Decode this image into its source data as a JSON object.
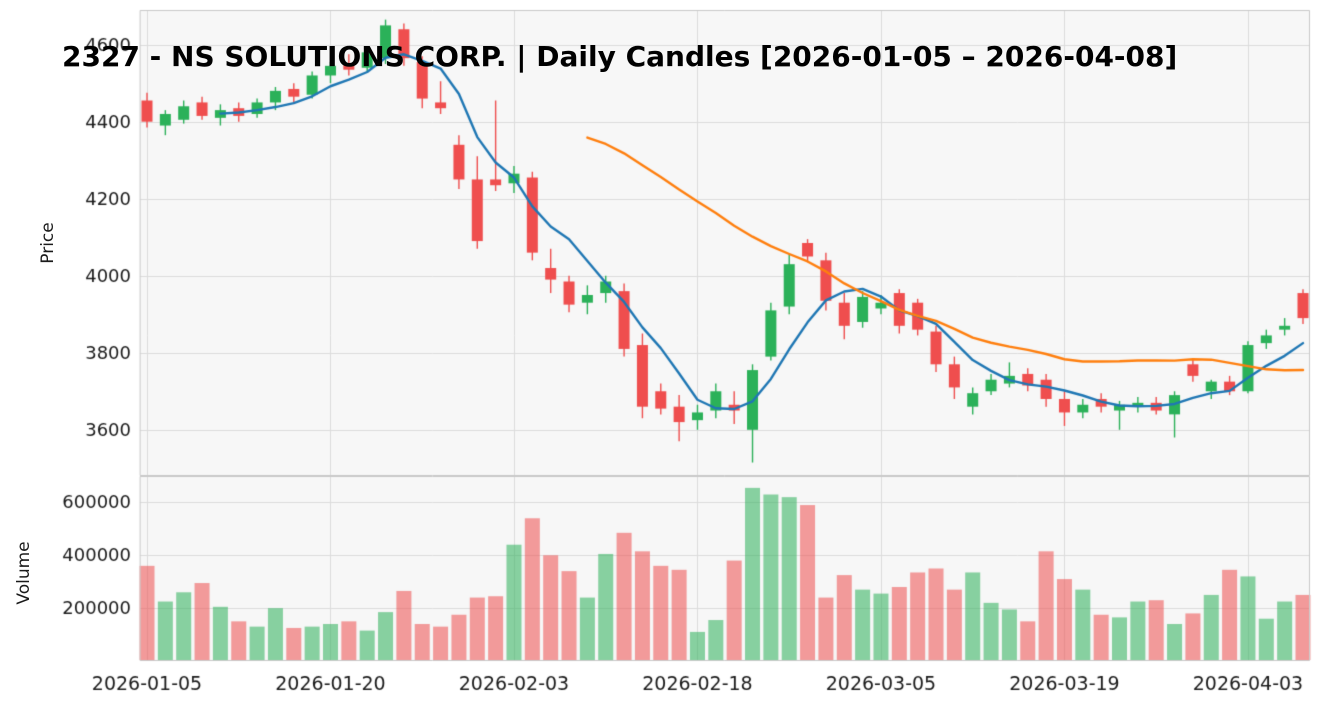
{
  "title": "2327 - NS SOLUTIONS CORP. | Daily Candles [2026-01-05 – 2026-04-08]",
  "price_axis": {
    "label": "Price",
    "ticks": [
      4600,
      4400,
      4200,
      4000,
      3800,
      3600
    ],
    "tick_labels": [
      "4600",
      "4400",
      "4200",
      "4000",
      "3800",
      "3600"
    ]
  },
  "volume_axis": {
    "label": "Volume",
    "ticks": [
      600000,
      400000,
      200000
    ],
    "tick_labels": [
      "600000",
      "400000",
      "200000"
    ]
  },
  "x_axis": {
    "tick_indices": [
      0,
      10,
      20,
      30,
      40,
      50,
      60
    ],
    "tick_labels": [
      "2026-01-05",
      "2026-01-20",
      "2026-02-03",
      "2026-02-18",
      "2026-03-05",
      "2026-03-19",
      "2026-04-03"
    ]
  },
  "colors": {
    "up": "#2bb159",
    "down": "#ef4e4e",
    "ma_fast": "#1f77b4",
    "ma_slow": "#ff7f0e",
    "grid": "#dcdcdc",
    "panel_bg": "#f7f7f7",
    "spine": "#c9c9c9",
    "text": "#1a1a1a",
    "volume_alpha": 0.55
  },
  "chart_data": {
    "type": "candlestick",
    "title": "2327 - NS SOLUTIONS CORP. | Daily Candles [2026-01-05 – 2026-04-08]",
    "xlabel": "",
    "ylabel": "Price",
    "ylabel2": "Volume",
    "price_ylim": [
      3480,
      4690
    ],
    "volume_ylim": [
      0,
      700000
    ],
    "legend": "off",
    "grid": "on",
    "dates": [
      "2026-01-05",
      "2026-01-06",
      "2026-01-07",
      "2026-01-08",
      "2026-01-09",
      "2026-01-13",
      "2026-01-14",
      "2026-01-15",
      "2026-01-16",
      "2026-01-19",
      "2026-01-20",
      "2026-01-21",
      "2026-01-22",
      "2026-01-23",
      "2026-01-26",
      "2026-01-27",
      "2026-01-28",
      "2026-01-29",
      "2026-01-30",
      "2026-02-02",
      "2026-02-03",
      "2026-02-04",
      "2026-02-05",
      "2026-02-06",
      "2026-02-09",
      "2026-02-10",
      "2026-02-12",
      "2026-02-13",
      "2026-02-16",
      "2026-02-17",
      "2026-02-18",
      "2026-02-19",
      "2026-02-20",
      "2026-02-24",
      "2026-02-25",
      "2026-02-26",
      "2026-02-27",
      "2026-03-02",
      "2026-03-03",
      "2026-03-04",
      "2026-03-05",
      "2026-03-06",
      "2026-03-09",
      "2026-03-10",
      "2026-03-11",
      "2026-03-12",
      "2026-03-13",
      "2026-03-16",
      "2026-03-17",
      "2026-03-18",
      "2026-03-19",
      "2026-03-23",
      "2026-03-24",
      "2026-03-25",
      "2026-03-26",
      "2026-03-27",
      "2026-03-30",
      "2026-03-31",
      "2026-04-01",
      "2026-04-02",
      "2026-04-03",
      "2026-04-06",
      "2026-04-07",
      "2026-04-08"
    ],
    "open": [
      4455,
      4390,
      4405,
      4450,
      4410,
      4435,
      4420,
      4450,
      4485,
      4470,
      4520,
      4550,
      4540,
      4565,
      4640,
      4555,
      4450,
      4340,
      4250,
      4250,
      4240,
      4255,
      4020,
      3985,
      3930,
      3955,
      3960,
      3820,
      3700,
      3660,
      3625,
      3650,
      3665,
      3600,
      3790,
      3920,
      4085,
      4040,
      3930,
      3880,
      3915,
      3955,
      3930,
      3855,
      3770,
      3660,
      3700,
      3720,
      3745,
      3730,
      3680,
      3645,
      3680,
      3650,
      3660,
      3670,
      3640,
      3770,
      3700,
      3725,
      3700,
      3825,
      3860,
      3955
    ],
    "high": [
      4475,
      4430,
      4455,
      4465,
      4445,
      4450,
      4460,
      4490,
      4500,
      4530,
      4555,
      4575,
      4590,
      4665,
      4655,
      4570,
      4505,
      4365,
      4310,
      4455,
      4285,
      4270,
      4070,
      4000,
      3975,
      4000,
      3980,
      3850,
      3720,
      3690,
      3665,
      3720,
      3700,
      3770,
      3930,
      4055,
      4095,
      4060,
      3955,
      3960,
      3950,
      3965,
      3940,
      3870,
      3790,
      3710,
      3745,
      3775,
      3760,
      3745,
      3700,
      3680,
      3695,
      3675,
      3685,
      3685,
      3700,
      3785,
      3730,
      3740,
      3830,
      3860,
      3890,
      3965
    ],
    "low": [
      4385,
      4365,
      4395,
      4405,
      4390,
      4400,
      4410,
      4430,
      4450,
      4460,
      4500,
      4520,
      4530,
      4550,
      4545,
      4435,
      4420,
      4225,
      4070,
      4220,
      4215,
      4040,
      3955,
      3905,
      3900,
      3930,
      3790,
      3630,
      3640,
      3570,
      3600,
      3630,
      3615,
      3515,
      3780,
      3900,
      4035,
      3910,
      3835,
      3865,
      3900,
      3850,
      3845,
      3750,
      3680,
      3640,
      3690,
      3710,
      3700,
      3660,
      3610,
      3630,
      3645,
      3600,
      3645,
      3640,
      3580,
      3725,
      3680,
      3690,
      3695,
      3810,
      3845,
      3875
    ],
    "close": [
      4400,
      4420,
      4440,
      4415,
      4430,
      4415,
      4450,
      4480,
      4465,
      4520,
      4545,
      4535,
      4580,
      4650,
      4565,
      4460,
      4435,
      4250,
      4090,
      4235,
      4265,
      4060,
      3990,
      3925,
      3950,
      3985,
      3810,
      3660,
      3655,
      3620,
      3645,
      3700,
      3650,
      3755,
      3910,
      4030,
      4050,
      3935,
      3870,
      3945,
      3930,
      3870,
      3860,
      3770,
      3710,
      3695,
      3730,
      3740,
      3715,
      3680,
      3645,
      3665,
      3660,
      3665,
      3670,
      3650,
      3690,
      3740,
      3725,
      3700,
      3820,
      3845,
      3870,
      3890
    ],
    "volume": [
      360000,
      225000,
      260000,
      295000,
      205000,
      150000,
      130000,
      200000,
      125000,
      130000,
      140000,
      150000,
      115000,
      185000,
      265000,
      140000,
      130000,
      175000,
      240000,
      245000,
      440000,
      540000,
      400000,
      340000,
      240000,
      405000,
      485000,
      415000,
      360000,
      345000,
      110000,
      155000,
      380000,
      655000,
      630000,
      620000,
      590000,
      240000,
      325000,
      270000,
      255000,
      280000,
      335000,
      350000,
      270000,
      335000,
      220000,
      195000,
      150000,
      415000,
      310000,
      270000,
      175000,
      165000,
      225000,
      230000,
      140000,
      180000,
      250000,
      345000,
      320000,
      160000,
      225000,
      250000
    ],
    "overlays": [
      {
        "name": "SMA5",
        "window": 5,
        "color": "#1f77b4"
      },
      {
        "name": "SMA25",
        "window": 25,
        "color": "#ff7f0e"
      }
    ]
  }
}
